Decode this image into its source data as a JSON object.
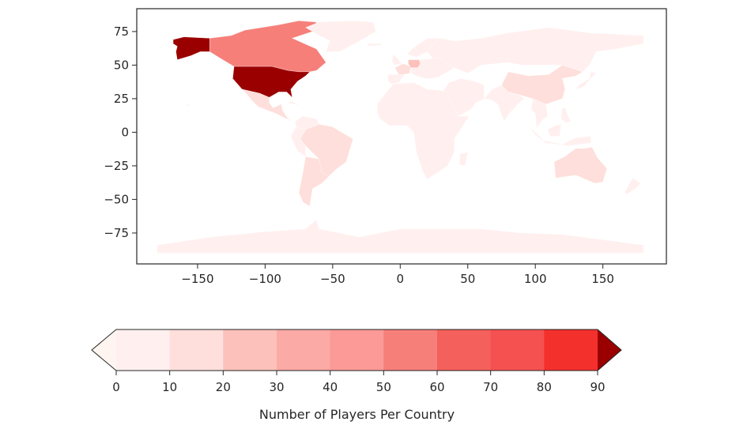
{
  "chart_data": {
    "type": "choropleth",
    "title": "",
    "xlabel": "",
    "ylabel": "",
    "xlim": [
      -195,
      197
    ],
    "ylim": [
      -98,
      92
    ],
    "xticks": [
      -150,
      -100,
      -50,
      0,
      50,
      100,
      150
    ],
    "yticks": [
      75,
      50,
      25,
      0,
      -25,
      -50,
      -75
    ],
    "xtick_labels": [
      "−150",
      "−100",
      "−50",
      "0",
      "50",
      "100",
      "150"
    ],
    "ytick_labels": [
      "75",
      "50",
      "25",
      "0",
      "−25",
      "−50",
      "−75"
    ],
    "colormap": "Reds",
    "bin_colors": [
      "#fff0ef",
      "#fedfdb",
      "#fcc1bb",
      "#fcaaa6",
      "#fb9a96",
      "#f67f7a",
      "#f4605b",
      "#f55150",
      "#f4302d"
    ],
    "over_color": "#9a0000",
    "under_color": "#fff5f0",
    "colorbar": {
      "label": "Number of Players Per Country",
      "min": 0,
      "max": 90,
      "step": 10,
      "extend": "both",
      "tick_labels": [
        "0",
        "10",
        "20",
        "30",
        "40",
        "50",
        "60",
        "70",
        "80",
        "90"
      ]
    },
    "regions": [
      {
        "name": "USA",
        "bin": "over"
      },
      {
        "name": "Alaska",
        "bin": "over"
      },
      {
        "name": "Canada",
        "bin": 5
      },
      {
        "name": "Germany",
        "bin": 2
      },
      {
        "name": "France",
        "bin": 1
      },
      {
        "name": "Mexico",
        "bin": 1
      },
      {
        "name": "Brazil",
        "bin": 1
      },
      {
        "name": "Argentina",
        "bin": 1
      },
      {
        "name": "Australia",
        "bin": 1
      },
      {
        "name": "China",
        "bin": 1
      },
      {
        "name": "Africa",
        "bin": 0
      },
      {
        "name": "Russia",
        "bin": 0
      },
      {
        "name": "Antarctica",
        "bin": 0
      }
    ]
  }
}
